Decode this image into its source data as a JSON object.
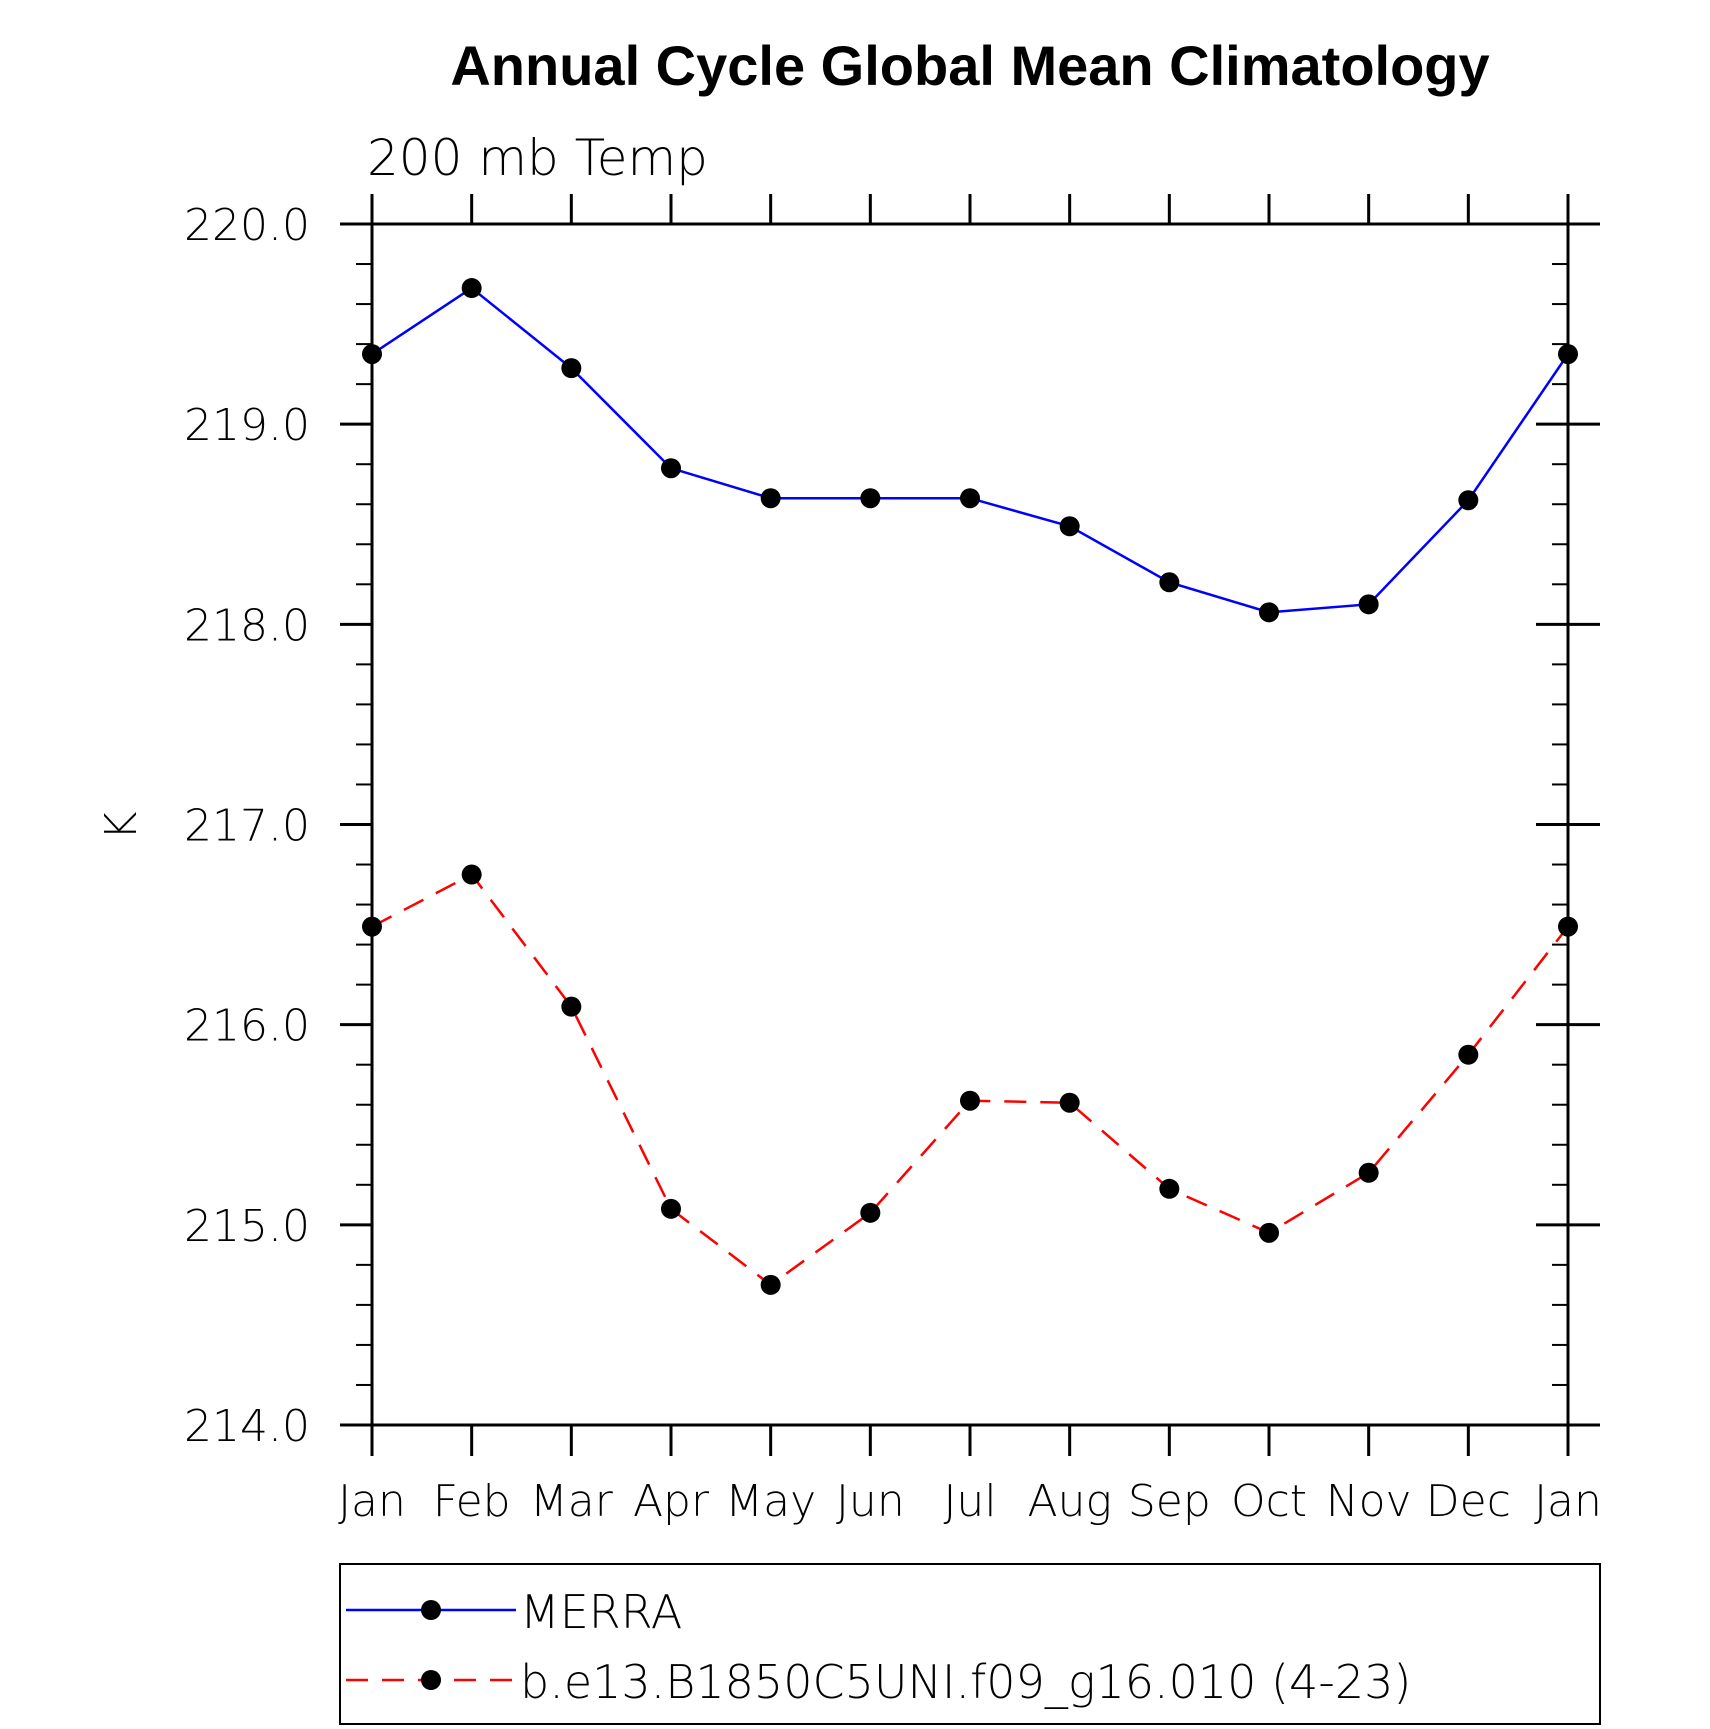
{
  "chart_data": {
    "type": "line",
    "title": "Annual Cycle Global Mean Climatology",
    "subtitle": "200 mb Temp",
    "xlabel": "",
    "ylabel": "K",
    "categories": [
      "Jan",
      "Feb",
      "Mar",
      "Apr",
      "May",
      "Jun",
      "Jul",
      "Aug",
      "Sep",
      "Oct",
      "Nov",
      "Dec",
      "Jan"
    ],
    "ylim": [
      214.0,
      220.0
    ],
    "yticks": [
      "214.0",
      "215.0",
      "216.0",
      "217.0",
      "218.0",
      "219.0",
      "220.0"
    ],
    "grid": false,
    "legend_position": "bottom",
    "series": [
      {
        "name": "MERRA",
        "color": "#0000ff",
        "line_style": "solid",
        "marker": "filled-circle",
        "values": [
          219.35,
          219.68,
          219.28,
          218.78,
          218.63,
          218.63,
          218.63,
          218.49,
          218.21,
          218.06,
          218.1,
          218.62,
          219.35
        ]
      },
      {
        "name": "b.e13.B1850C5UNI.f09_g16.010 (4-23)",
        "color": "#ff0000",
        "line_style": "dashed",
        "marker": "filled-circle",
        "values": [
          216.49,
          216.75,
          216.09,
          215.08,
          214.7,
          215.06,
          215.62,
          215.61,
          215.18,
          214.96,
          215.26,
          215.85,
          216.49
        ]
      }
    ]
  }
}
